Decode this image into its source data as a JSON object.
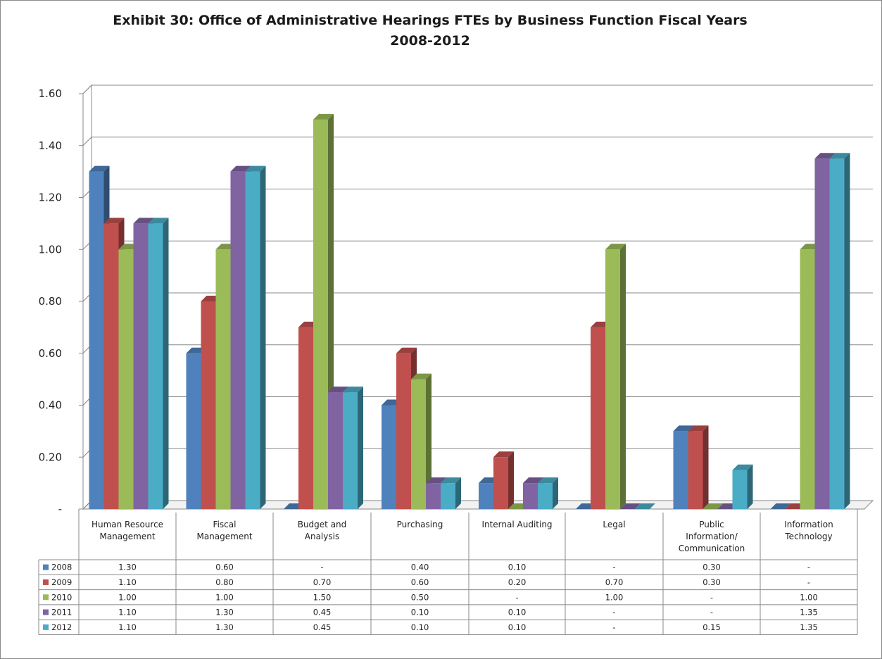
{
  "chart_data": {
    "type": "bar",
    "title": "Exhibit 30: Office of Administrative Hearings FTEs by Business Function Fiscal Years",
    "title_line2": "2008-2012",
    "xlabel": "",
    "ylabel": "",
    "ylim": [
      0,
      1.6
    ],
    "yticks": [
      {
        "value": 1.6,
        "label": "1.60"
      },
      {
        "value": 1.4,
        "label": "1.40"
      },
      {
        "value": 1.2,
        "label": "1.20"
      },
      {
        "value": 1.0,
        "label": "1.00"
      },
      {
        "value": 0.8,
        "label": "0.80"
      },
      {
        "value": 0.6,
        "label": "0.60"
      },
      {
        "value": 0.4,
        "label": "0.40"
      },
      {
        "value": 0.2,
        "label": "0.20"
      },
      {
        "value": 0.0,
        "label": "-"
      }
    ],
    "grid": true,
    "legend": "data-table",
    "categories": [
      [
        "Human Resource",
        "Management"
      ],
      [
        "Fiscal",
        "Management"
      ],
      [
        "Budget and",
        "Analysis"
      ],
      [
        "Purchasing"
      ],
      [
        "Internal Auditing"
      ],
      [
        "Legal"
      ],
      [
        "Public",
        "Information/",
        "Communication"
      ],
      [
        "Information",
        "Technology"
      ]
    ],
    "series": [
      {
        "name": "2008",
        "color": "#4F81BD",
        "values": [
          1.3,
          0.6,
          0,
          0.4,
          0.1,
          0,
          0.3,
          0
        ],
        "labels": [
          "1.30",
          "0.60",
          "-",
          "0.40",
          "0.10",
          "-",
          "0.30",
          "-"
        ]
      },
      {
        "name": "2009",
        "color": "#C0504D",
        "values": [
          1.1,
          0.8,
          0.7,
          0.6,
          0.2,
          0.7,
          0.3,
          0
        ],
        "labels": [
          "1.10",
          "0.80",
          "0.70",
          "0.60",
          "0.20",
          "0.70",
          "0.30",
          "-"
        ]
      },
      {
        "name": "2010",
        "color": "#9BBB59",
        "values": [
          1.0,
          1.0,
          1.5,
          0.5,
          0,
          1.0,
          0,
          1.0
        ],
        "labels": [
          "1.00",
          "1.00",
          "1.50",
          "0.50",
          "-",
          "1.00",
          "-",
          "1.00"
        ]
      },
      {
        "name": "2011",
        "color": "#8064A2",
        "values": [
          1.1,
          1.3,
          0.45,
          0.1,
          0.1,
          0,
          0,
          1.35
        ],
        "labels": [
          "1.10",
          "1.30",
          "0.45",
          "0.10",
          "0.10",
          "-",
          "-",
          "1.35"
        ]
      },
      {
        "name": "2012",
        "color": "#4BACC6",
        "values": [
          1.1,
          1.3,
          0.45,
          0.1,
          0.1,
          0,
          0.15,
          1.35
        ],
        "labels": [
          "1.10",
          "1.30",
          "0.45",
          "0.10",
          "0.10",
          "-",
          "0.15",
          "1.35"
        ]
      }
    ]
  }
}
